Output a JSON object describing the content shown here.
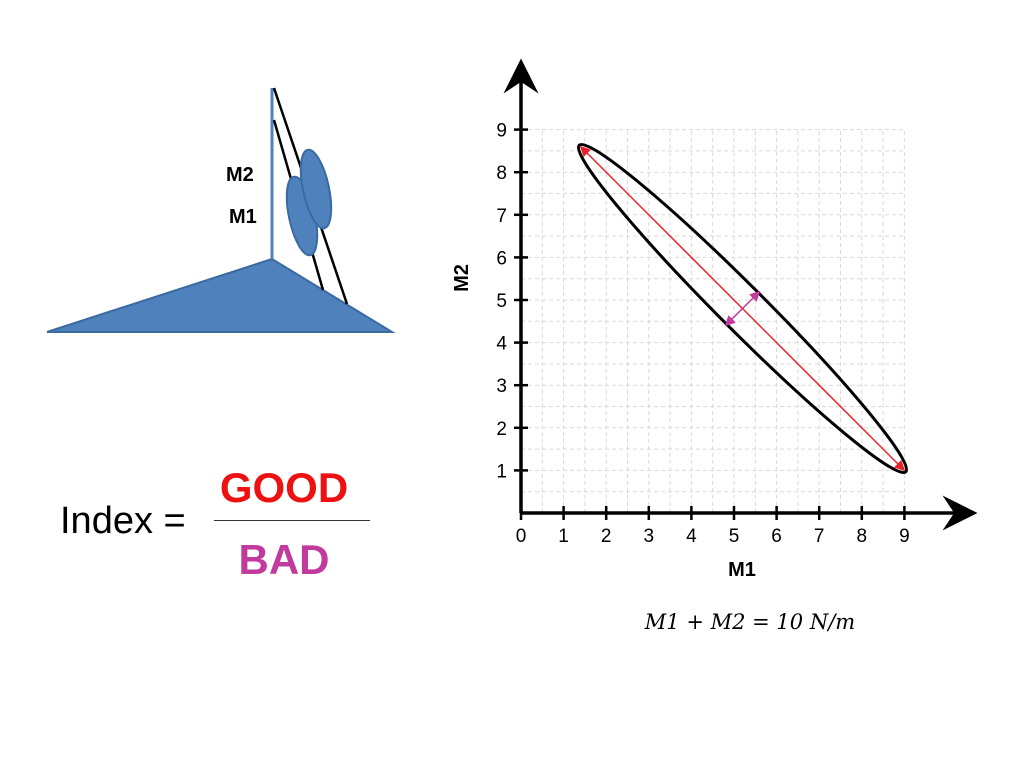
{
  "diagram": {
    "mass_labels": {
      "upper": "M2",
      "lower": "M1"
    },
    "colors": {
      "shape_fill": "#4f81bd",
      "shape_stroke": "#3a6aa0",
      "line": "#000000"
    }
  },
  "index": {
    "label": "Index =",
    "numerator": "GOOD",
    "denominator": "BAD",
    "numerator_color": "#ee1111",
    "denominator_color": "#c13b9f"
  },
  "formula": "M1 + M2 = 10 N/m",
  "chart_data": {
    "type": "scatter",
    "xlabel": "M1",
    "ylabel": "M2",
    "xlim": [
      0,
      10
    ],
    "ylim": [
      0,
      10
    ],
    "x_ticks": [
      0,
      1,
      2,
      3,
      4,
      5,
      6,
      7,
      8,
      9
    ],
    "y_ticks": [
      1,
      2,
      3,
      4,
      5,
      6,
      7,
      8,
      9
    ],
    "grid": true,
    "ellipse": {
      "center": [
        5.2,
        4.8
      ],
      "major_axis_endpoints": [
        [
          1.4,
          8.6
        ],
        [
          9.0,
          1.0
        ]
      ],
      "minor_semi_axis": 0.5,
      "stroke_color": "#000000"
    },
    "major_arrow": {
      "from": [
        1.4,
        8.6
      ],
      "to": [
        9.0,
        1.0
      ],
      "color": "#e8202a"
    },
    "minor_arrow": {
      "from": [
        4.8,
        4.4
      ],
      "to": [
        5.6,
        5.2
      ],
      "color": "#c13b9f"
    }
  }
}
